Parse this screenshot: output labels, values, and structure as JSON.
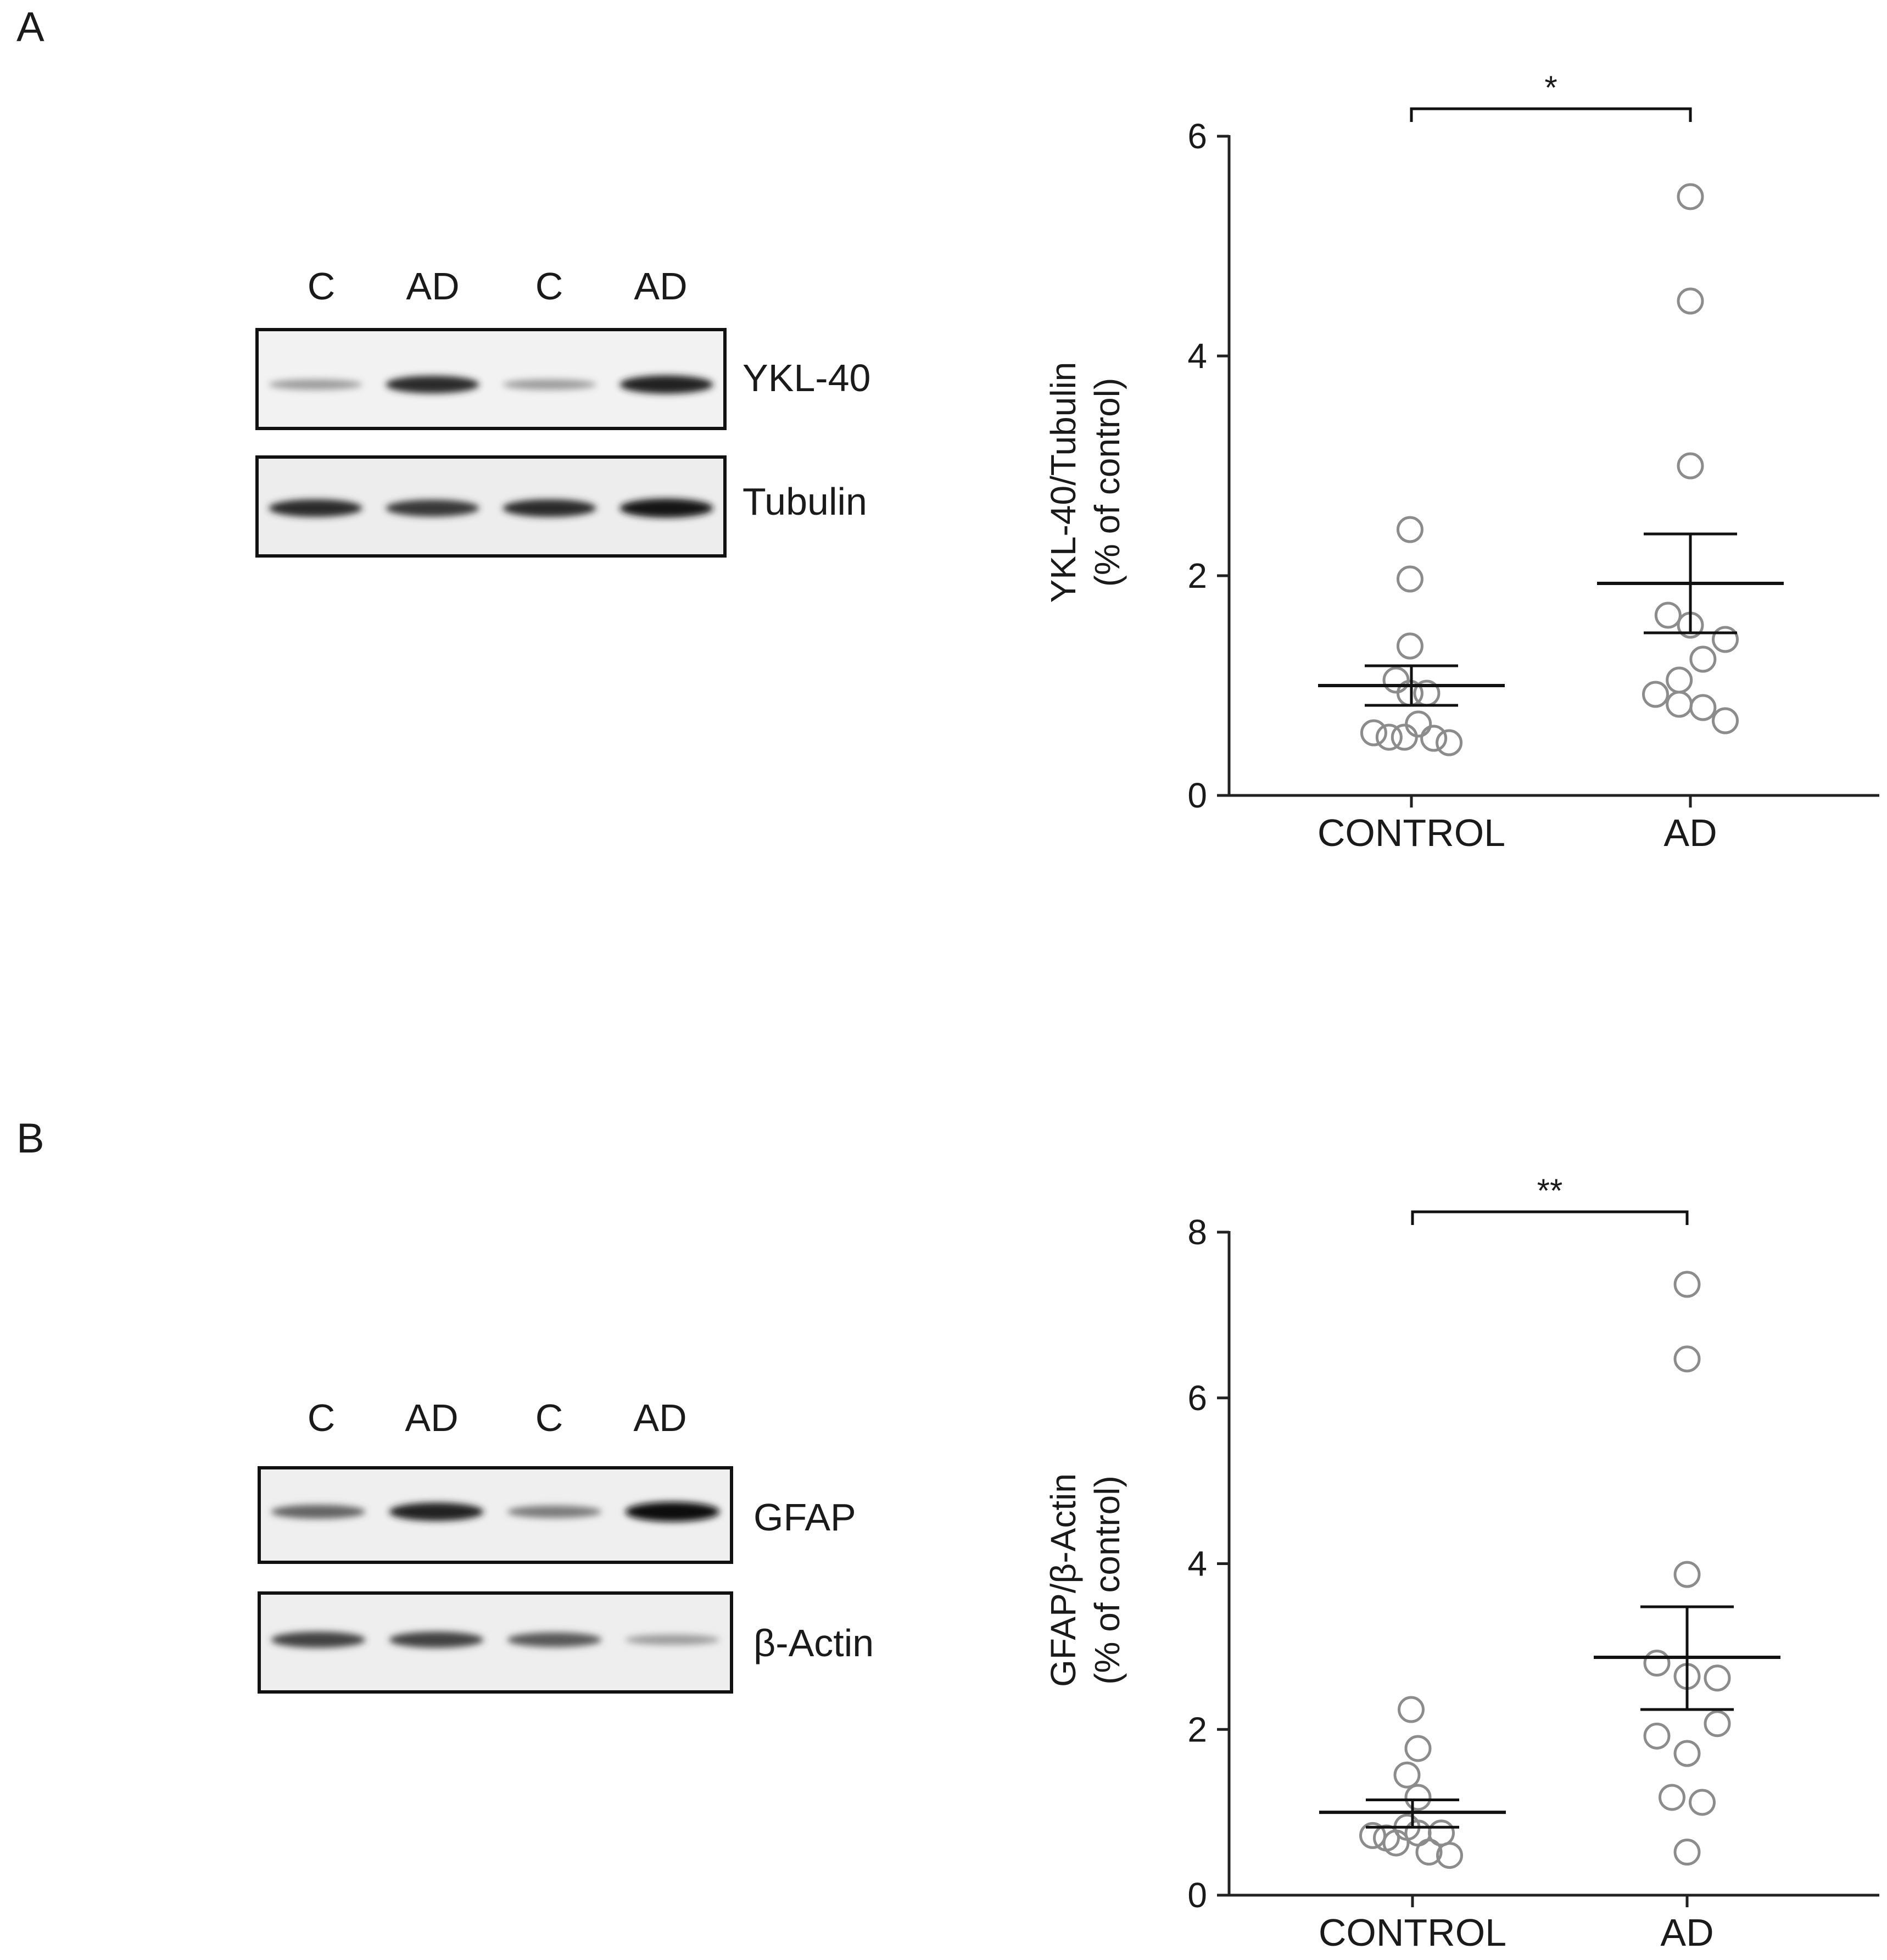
{
  "panels": [
    {
      "letter": "A",
      "blot": {
        "lanes": [
          "C",
          "AD",
          "C",
          "AD"
        ],
        "rows": [
          {
            "label": "YKL-40",
            "intensity": [
              0.35,
              0.85,
              0.35,
              0.9
            ]
          },
          {
            "label": "Tubulin",
            "intensity": [
              0.85,
              0.8,
              0.85,
              0.95
            ]
          }
        ]
      }
    },
    {
      "letter": "B",
      "blot": {
        "lanes": [
          "C",
          "AD",
          "C",
          "AD"
        ],
        "rows": [
          {
            "label": "GFAP",
            "intensity": [
              0.6,
              0.9,
              0.5,
              1.0
            ]
          },
          {
            "label": "β-Actin",
            "intensity": [
              0.75,
              0.75,
              0.65,
              0.35
            ]
          }
        ]
      }
    }
  ],
  "chart_data": [
    {
      "type": "scatter",
      "title": "",
      "xlabel": "",
      "ylabel": [
        "YKL-40/Tubulin",
        "(% of control)"
      ],
      "categories": [
        "CONTROL",
        "AD"
      ],
      "ylim": [
        0,
        6
      ],
      "yticks": [
        0,
        2,
        4,
        6
      ],
      "significance": "*",
      "grid": false,
      "series": [
        {
          "category": "CONTROL",
          "points": [
            {
              "x": -0.01,
              "y": 2.42
            },
            {
              "x": -0.01,
              "y": 1.97
            },
            {
              "x": -0.01,
              "y": 1.36
            },
            {
              "x": -0.11,
              "y": 1.05
            },
            {
              "x": -0.01,
              "y": 0.93
            },
            {
              "x": 0.11,
              "y": 0.93
            },
            {
              "x": 0.05,
              "y": 0.65
            },
            {
              "x": -0.27,
              "y": 0.57
            },
            {
              "x": -0.16,
              "y": 0.53
            },
            {
              "x": -0.05,
              "y": 0.53
            },
            {
              "x": 0.16,
              "y": 0.52
            },
            {
              "x": 0.27,
              "y": 0.48
            }
          ],
          "mean": 1.0,
          "sem_low": 0.82,
          "sem_high": 1.18
        },
        {
          "category": "AD",
          "points": [
            {
              "x": 0.0,
              "y": 5.45
            },
            {
              "x": 0.0,
              "y": 4.5
            },
            {
              "x": 0.0,
              "y": 3.0
            },
            {
              "x": -0.16,
              "y": 1.64
            },
            {
              "x": 0.0,
              "y": 1.55
            },
            {
              "x": 0.25,
              "y": 1.42
            },
            {
              "x": 0.09,
              "y": 1.24
            },
            {
              "x": -0.08,
              "y": 1.05
            },
            {
              "x": -0.25,
              "y": 0.92
            },
            {
              "x": -0.08,
              "y": 0.83
            },
            {
              "x": 0.09,
              "y": 0.8
            },
            {
              "x": 0.25,
              "y": 0.68
            }
          ],
          "mean": 1.93,
          "sem_low": 1.48,
          "sem_high": 2.38
        }
      ]
    },
    {
      "type": "scatter",
      "title": "",
      "xlabel": "",
      "ylabel": [
        "GFAP/β-Actin",
        "(% of control)"
      ],
      "categories": [
        "CONTROL",
        "AD"
      ],
      "ylim": [
        0,
        8
      ],
      "yticks": [
        0,
        2,
        4,
        6,
        8
      ],
      "significance": "**",
      "grid": false,
      "series": [
        {
          "category": "CONTROL",
          "points": [
            {
              "x": -0.01,
              "y": 2.24
            },
            {
              "x": 0.04,
              "y": 1.77
            },
            {
              "x": -0.04,
              "y": 1.45
            },
            {
              "x": 0.04,
              "y": 1.18
            },
            {
              "x": -0.29,
              "y": 0.72
            },
            {
              "x": -0.19,
              "y": 0.69
            },
            {
              "x": -0.12,
              "y": 0.63
            },
            {
              "x": 0.04,
              "y": 0.75
            },
            {
              "x": 0.21,
              "y": 0.75
            },
            {
              "x": 0.12,
              "y": 0.52
            },
            {
              "x": 0.27,
              "y": 0.48
            },
            {
              "x": -0.04,
              "y": 0.82
            }
          ],
          "mean": 1.0,
          "sem_low": 0.82,
          "sem_high": 1.15
        },
        {
          "category": "AD",
          "points": [
            {
              "x": 0.0,
              "y": 7.37
            },
            {
              "x": 0.0,
              "y": 6.47
            },
            {
              "x": 0.0,
              "y": 3.87
            },
            {
              "x": -0.22,
              "y": 2.8
            },
            {
              "x": 0.0,
              "y": 2.64
            },
            {
              "x": 0.22,
              "y": 2.62
            },
            {
              "x": -0.22,
              "y": 1.92
            },
            {
              "x": 0.22,
              "y": 2.07
            },
            {
              "x": 0.0,
              "y": 1.71
            },
            {
              "x": -0.11,
              "y": 1.18
            },
            {
              "x": 0.11,
              "y": 1.12
            },
            {
              "x": 0.0,
              "y": 0.52
            }
          ],
          "mean": 2.87,
          "sem_low": 2.24,
          "sem_high": 3.48
        }
      ]
    }
  ]
}
